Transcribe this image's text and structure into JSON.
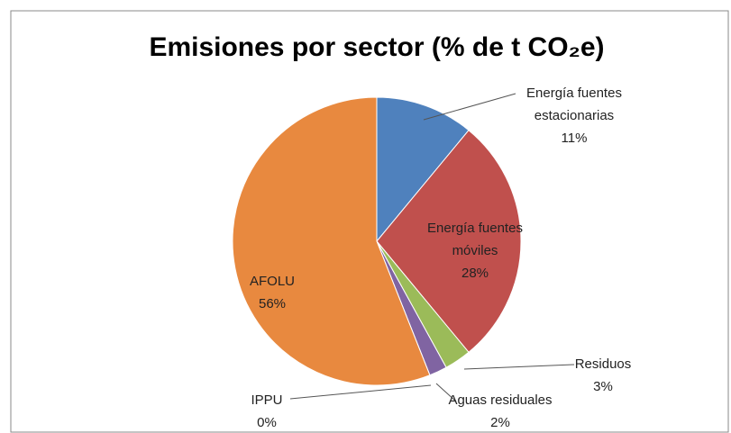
{
  "chart_data": {
    "type": "pie",
    "title": "Emisiones por sector (% de t CO₂e)",
    "categories": [
      "Energía fuentes estacionarias",
      "Energía fuentes móviles",
      "Residuos",
      "Aguas residuales",
      "IPPU",
      "AFOLU"
    ],
    "values": [
      11,
      28,
      3,
      2,
      0,
      56
    ],
    "value_labels": [
      "11%",
      "28%",
      "3%",
      "2%",
      "0%",
      "56%"
    ],
    "colors": [
      "#4f81bd",
      "#c0504d",
      "#9bbb59",
      "#8064a2",
      "#4bacc6",
      "#e8893f"
    ]
  }
}
